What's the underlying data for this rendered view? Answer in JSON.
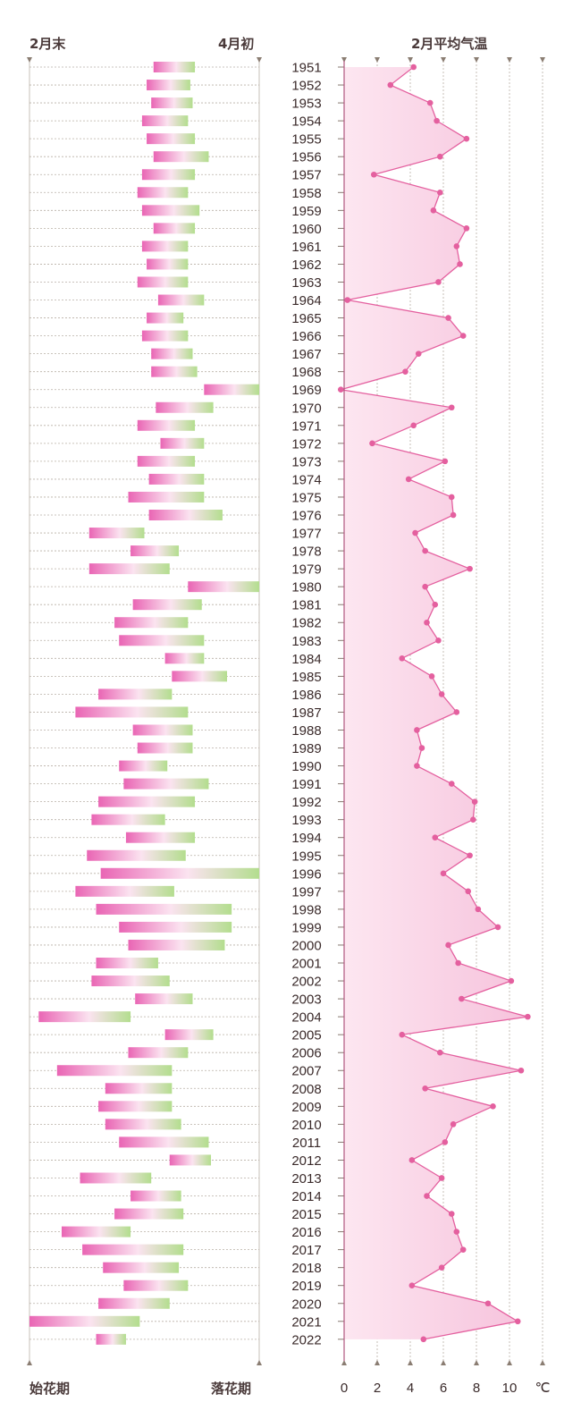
{
  "headers": {
    "left_top_start": "2月末",
    "left_top_end": "4月初",
    "right_top": "2月平均气温",
    "left_bottom_start": "始花期",
    "left_bottom_end": "落花期",
    "unit": "℃"
  },
  "colors": {
    "bloom_start": "#e965b4",
    "bloom_end": "#b3dd8e",
    "temp_line": "#e4609f",
    "temp_fill": "#f6c2dc",
    "grid": "#b9b0a6"
  },
  "chart_data": [
    {
      "type": "bar",
      "description_axis": "dates from end of February to early April",
      "xlim": [
        0,
        100
      ],
      "x_start_label": "2月末",
      "x_end_label": "4月初",
      "categories": [
        1951,
        1952,
        1953,
        1954,
        1955,
        1956,
        1957,
        1958,
        1959,
        1960,
        1961,
        1962,
        1963,
        1964,
        1965,
        1966,
        1967,
        1968,
        1969,
        1970,
        1971,
        1972,
        1973,
        1974,
        1975,
        1976,
        1977,
        1978,
        1979,
        1980,
        1981,
        1982,
        1983,
        1984,
        1985,
        1986,
        1987,
        1988,
        1989,
        1990,
        1991,
        1992,
        1993,
        1994,
        1995,
        1996,
        1997,
        1998,
        1999,
        2000,
        2001,
        2002,
        2003,
        2004,
        2005,
        2006,
        2007,
        2008,
        2009,
        2010,
        2011,
        2012,
        2013,
        2014,
        2015,
        2016,
        2017,
        2018,
        2019,
        2020,
        2021,
        2022
      ],
      "series": [
        {
          "name": "始花期",
          "values": [
            54,
            51,
            53,
            49,
            51,
            54,
            49,
            47,
            49,
            54,
            49,
            51,
            47,
            56,
            51,
            49,
            53,
            53,
            76,
            55,
            47,
            57,
            47,
            52,
            43,
            52,
            26,
            44,
            26,
            69,
            45,
            37,
            39,
            59,
            62,
            30,
            20,
            45,
            47,
            39,
            41,
            30,
            27,
            42,
            25,
            31,
            20,
            29,
            39,
            43,
            29,
            27,
            46,
            4,
            59,
            43,
            12,
            33,
            30,
            33,
            39,
            61,
            22,
            44,
            37,
            14,
            23,
            32,
            41,
            30,
            0,
            29
          ],
          "note": "start of bloom bar, 0 = end of February, 100 = early April"
        },
        {
          "name": "落花期",
          "values": [
            72,
            70,
            71,
            69,
            72,
            78,
            72,
            69,
            74,
            72,
            69,
            69,
            69,
            76,
            67,
            69,
            71,
            73,
            100,
            80,
            72,
            76,
            72,
            76,
            76,
            84,
            50,
            65,
            61,
            100,
            75,
            69,
            76,
            76,
            86,
            62,
            69,
            71,
            71,
            60,
            78,
            72,
            59,
            72,
            68,
            100,
            63,
            88,
            88,
            85,
            56,
            61,
            71,
            44,
            80,
            69,
            62,
            62,
            62,
            66,
            78,
            79,
            53,
            66,
            67,
            44,
            67,
            65,
            69,
            61,
            48,
            42
          ],
          "note": "end of bloom bar"
        }
      ]
    },
    {
      "type": "area",
      "title": "2月平均气温",
      "xlabel": "℃",
      "xlim": [
        0,
        12
      ],
      "ticks": [
        0,
        2,
        4,
        6,
        8,
        10
      ],
      "categories": [
        1951,
        1952,
        1953,
        1954,
        1955,
        1956,
        1957,
        1958,
        1959,
        1960,
        1961,
        1962,
        1963,
        1964,
        1965,
        1966,
        1967,
        1968,
        1969,
        1970,
        1971,
        1972,
        1973,
        1974,
        1975,
        1976,
        1977,
        1978,
        1979,
        1980,
        1981,
        1982,
        1983,
        1984,
        1985,
        1986,
        1987,
        1988,
        1989,
        1990,
        1991,
        1992,
        1993,
        1994,
        1995,
        1996,
        1997,
        1998,
        1999,
        2000,
        2001,
        2002,
        2003,
        2004,
        2005,
        2006,
        2007,
        2008,
        2009,
        2010,
        2011,
        2012,
        2013,
        2014,
        2015,
        2016,
        2017,
        2018,
        2019,
        2020,
        2021,
        2022
      ],
      "series": [
        {
          "name": "2月平均气温",
          "values": [
            4.2,
            2.8,
            5.2,
            5.6,
            7.4,
            5.8,
            1.8,
            5.8,
            5.4,
            7.4,
            6.8,
            7.0,
            5.7,
            0.2,
            6.3,
            7.2,
            4.5,
            3.7,
            -0.2,
            6.5,
            4.2,
            1.7,
            6.1,
            3.9,
            6.5,
            6.6,
            4.3,
            4.9,
            7.6,
            4.9,
            5.5,
            5.0,
            5.7,
            3.5,
            5.3,
            5.9,
            6.8,
            4.4,
            4.7,
            4.4,
            6.5,
            7.9,
            7.8,
            5.5,
            7.6,
            6.0,
            7.5,
            8.1,
            9.3,
            6.3,
            6.9,
            10.1,
            7.1,
            11.1,
            3.5,
            5.8,
            10.7,
            4.9,
            9.0,
            6.6,
            6.1,
            4.1,
            5.9,
            5.0,
            6.5,
            6.8,
            7.2,
            5.9,
            4.1,
            8.7,
            10.5,
            4.8
          ]
        }
      ]
    }
  ]
}
